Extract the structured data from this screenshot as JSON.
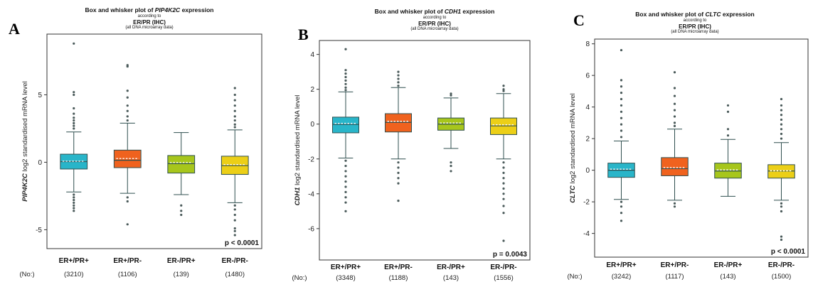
{
  "panels": [
    {
      "id": "a",
      "letter": "A",
      "title_prefix": "Box and whisker plot of ",
      "title_gene": "PIP4K2C",
      "title_suffix": " expression",
      "according_to": "according to",
      "grouping": "ER/PR (IHC)",
      "source_note": "(all DNA microarray data)",
      "ylabel_gene": "PIP4K2C",
      "ylabel_rest": " log2 standardised mRNA level",
      "pvalue": "p < 0.0001",
      "no_label": "(No:)",
      "chart_data": {
        "type": "box",
        "categories": [
          "ER+/PR+",
          "ER+/PR-",
          "ER-/PR+",
          "ER-/PR-"
        ],
        "counts": [
          "(3210)",
          "(1106)",
          "(139)",
          "(1480)"
        ],
        "colors": [
          "#29b5c9",
          "#f0621e",
          "#a7c61c",
          "#eccf17"
        ],
        "ylim": [
          -6.4,
          9.5
        ],
        "yticks": [
          -5,
          0,
          5
        ],
        "boxes": [
          {
            "q1": -0.5,
            "median": 0.05,
            "mean": 0.0,
            "q3": 0.6,
            "whisker_low": -2.2,
            "whisker_high": 2.25,
            "outliers": [
              8.8,
              5.2,
              5.0,
              4.0,
              3.6,
              3.3,
              3.1,
              2.9,
              2.7,
              2.5,
              -2.4,
              -2.6,
              -2.8,
              -3.0,
              -3.2,
              -3.4,
              -3.6
            ]
          },
          {
            "q1": -0.4,
            "median": 0.15,
            "mean": 0.2,
            "q3": 0.9,
            "whisker_low": -2.3,
            "whisker_high": 2.9,
            "outliers": [
              7.2,
              7.1,
              5.3,
              4.8,
              4.2,
              3.8,
              3.4,
              3.1,
              -2.6,
              -2.9,
              -4.6
            ]
          },
          {
            "q1": -0.8,
            "median": -0.1,
            "mean": -0.1,
            "q3": 0.5,
            "whisker_low": -2.4,
            "whisker_high": 2.2,
            "outliers": [
              -3.2,
              -3.6,
              -3.9
            ]
          },
          {
            "q1": -0.9,
            "median": -0.25,
            "mean": -0.25,
            "q3": 0.45,
            "whisker_low": -3.0,
            "whisker_high": 2.4,
            "outliers": [
              5.5,
              5.0,
              4.6,
              4.2,
              3.8,
              3.4,
              3.1,
              2.8,
              2.6,
              -3.2,
              -3.5,
              -3.9,
              -4.3,
              -4.9,
              -5.1,
              -5.4
            ]
          }
        ]
      }
    },
    {
      "id": "b",
      "letter": "B",
      "title_prefix": "Box and whisker plot of ",
      "title_gene": "CDH1",
      "title_suffix": " expression",
      "according_to": "according to",
      "grouping": "ER/PR (IHC)",
      "source_note": "(all DNA microarray data)",
      "ylabel_gene": "CDH1",
      "ylabel_rest": " log2 standardised mRNA level",
      "pvalue": "p = 0.0043",
      "no_label": "(No:)",
      "chart_data": {
        "type": "box",
        "categories": [
          "ER+/PR+",
          "ER+/PR-",
          "ER-/PR+",
          "ER-/PR-"
        ],
        "counts": [
          "(3348)",
          "(1188)",
          "(143)",
          "(1556)"
        ],
        "colors": [
          "#29b5c9",
          "#f0621e",
          "#a7c61c",
          "#eccf17"
        ],
        "ylim": [
          -7.8,
          4.8
        ],
        "yticks": [
          -6,
          -4,
          -2,
          0,
          2,
          4
        ],
        "boxes": [
          {
            "q1": -0.5,
            "median": -0.02,
            "mean": -0.02,
            "q3": 0.4,
            "whisker_low": -1.95,
            "whisker_high": 1.85,
            "outliers": [
              4.3,
              3.1,
              2.9,
              2.7,
              2.5,
              2.3,
              2.1,
              1.95,
              -2.1,
              -2.4,
              -2.7,
              -3.0,
              -3.3,
              -3.6,
              -3.9,
              -4.2,
              -4.5,
              -5.0
            ]
          },
          {
            "q1": -0.45,
            "median": 0.1,
            "mean": 0.1,
            "q3": 0.6,
            "whisker_low": -2.0,
            "whisker_high": 2.1,
            "outliers": [
              3.0,
              2.8,
              2.6,
              2.4,
              2.2,
              -2.2,
              -2.5,
              -2.8,
              -3.1,
              -3.4,
              -4.4
            ]
          },
          {
            "q1": -0.35,
            "median": 0.0,
            "mean": 0.0,
            "q3": 0.35,
            "whisker_low": -1.4,
            "whisker_high": 1.5,
            "outliers": [
              1.75,
              1.65,
              -2.2,
              -2.4,
              -2.7
            ]
          },
          {
            "q1": -0.6,
            "median": -0.1,
            "mean": -0.1,
            "q3": 0.35,
            "whisker_low": -2.0,
            "whisker_high": 1.75,
            "outliers": [
              2.2,
              2.0,
              1.9,
              -2.2,
              -2.5,
              -2.8,
              -3.1,
              -3.4,
              -3.7,
              -4.0,
              -4.3,
              -4.7,
              -5.1,
              -6.7
            ]
          }
        ]
      }
    },
    {
      "id": "c",
      "letter": "C",
      "title_prefix": "Box and whisker plot of ",
      "title_gene": "CLTC",
      "title_suffix": " expression",
      "according_to": "according to",
      "grouping": "ER/PR (IHC)",
      "source_note": "(all DNA microarray data)",
      "ylabel_gene": "CLTC",
      "ylabel_rest": " log2 standardised mRNA level",
      "pvalue": "p < 0.0001",
      "no_label": "(No:)",
      "chart_data": {
        "type": "box",
        "categories": [
          "ER+/PR+",
          "ER+/PR-",
          "ER-/PR+",
          "ER-/PR-"
        ],
        "counts": [
          "(3242)",
          "(1117)",
          "(143)",
          "(1500)"
        ],
        "colors": [
          "#29b5c9",
          "#f0621e",
          "#a7c61c",
          "#eccf17"
        ],
        "ylim": [
          -5.5,
          8.3
        ],
        "yticks": [
          -4,
          -2,
          0,
          2,
          4,
          6,
          8
        ],
        "boxes": [
          {
            "q1": -0.45,
            "median": 0.0,
            "mean": 0.0,
            "q3": 0.45,
            "whisker_low": -1.85,
            "whisker_high": 1.85,
            "outliers": [
              7.6,
              5.7,
              5.3,
              4.9,
              4.5,
              4.1,
              3.7,
              3.3,
              2.9,
              2.5,
              2.1,
              -2.0,
              -2.3,
              -2.7,
              -3.2
            ]
          },
          {
            "q1": -0.35,
            "median": 0.1,
            "mean": 0.1,
            "q3": 0.8,
            "whisker_low": -1.9,
            "whisker_high": 2.6,
            "outliers": [
              6.2,
              5.2,
              4.7,
              4.2,
              3.8,
              3.4,
              3.0,
              2.8,
              -2.1,
              -2.3
            ]
          },
          {
            "q1": -0.5,
            "median": -0.05,
            "mean": -0.05,
            "q3": 0.45,
            "whisker_low": -1.65,
            "whisker_high": 1.95,
            "outliers": [
              4.1,
              3.7,
              2.6,
              2.2
            ]
          },
          {
            "q1": -0.5,
            "median": -0.05,
            "mean": -0.1,
            "q3": 0.35,
            "whisker_low": -1.9,
            "whisker_high": 1.75,
            "outliers": [
              4.5,
              4.1,
              3.8,
              3.5,
              3.2,
              2.9,
              2.6,
              2.3,
              2.0,
              -2.1,
              -2.3,
              -2.6,
              -4.2,
              -4.4
            ]
          }
        ]
      }
    }
  ]
}
